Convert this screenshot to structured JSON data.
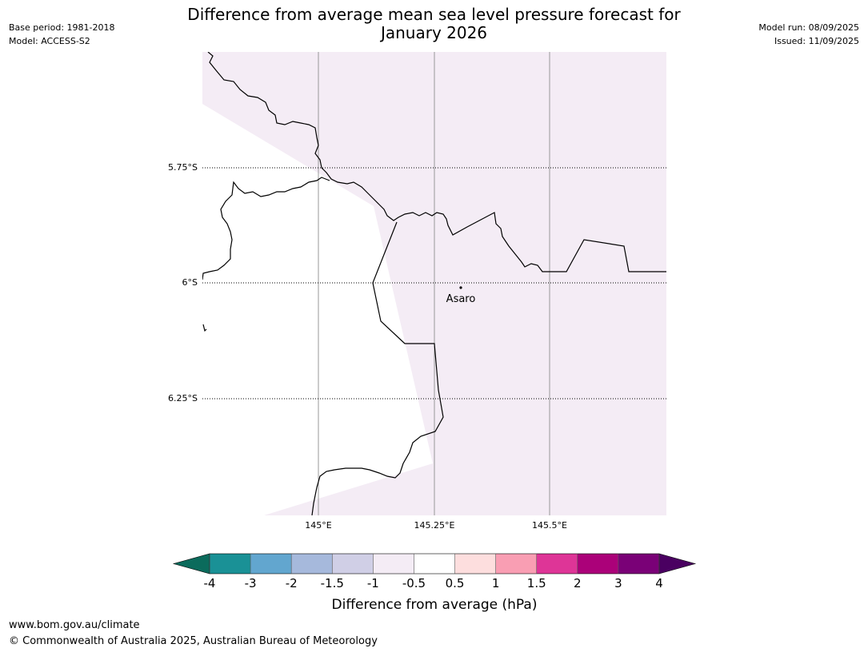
{
  "header": {
    "title_line1": "Difference from average mean sea level pressure forecast for",
    "title_line2": "January 2026",
    "base_period": "Base period: 1981-2018",
    "model": "Model: ACCESS-S2",
    "model_run": "Model run: 08/09/2025",
    "issued": "Issued: 11/09/2025"
  },
  "map": {
    "lat_labels": [
      "5.75°S",
      "6°S",
      "6.25°S"
    ],
    "lon_labels": [
      "145°E",
      "145.25°E",
      "145.5°E"
    ],
    "place_label": "Asaro",
    "fill_color": "#f4ecf5",
    "coast_color": "#000000"
  },
  "colorbar": {
    "ticks": [
      "-4",
      "-3",
      "-2",
      "-1.5",
      "-1",
      "-0.5",
      "0.5",
      "1",
      "1.5",
      "2",
      "3",
      "4"
    ],
    "colors": [
      "#1a9196",
      "#62a6cf",
      "#a6b9dc",
      "#d0cfe6",
      "#f4ecf5",
      "#ffffff",
      "#fddede",
      "#f99eb3",
      "#de3597",
      "#ab0179",
      "#7a0177"
    ],
    "under_color": "#0b6b5c",
    "over_color": "#4a0061",
    "label": "Difference from average (hPa)"
  },
  "footer": {
    "url": "www.bom.gov.au/climate",
    "copyright": "© Commonwealth of Australia 2025, Australian Bureau of Meteorology"
  }
}
